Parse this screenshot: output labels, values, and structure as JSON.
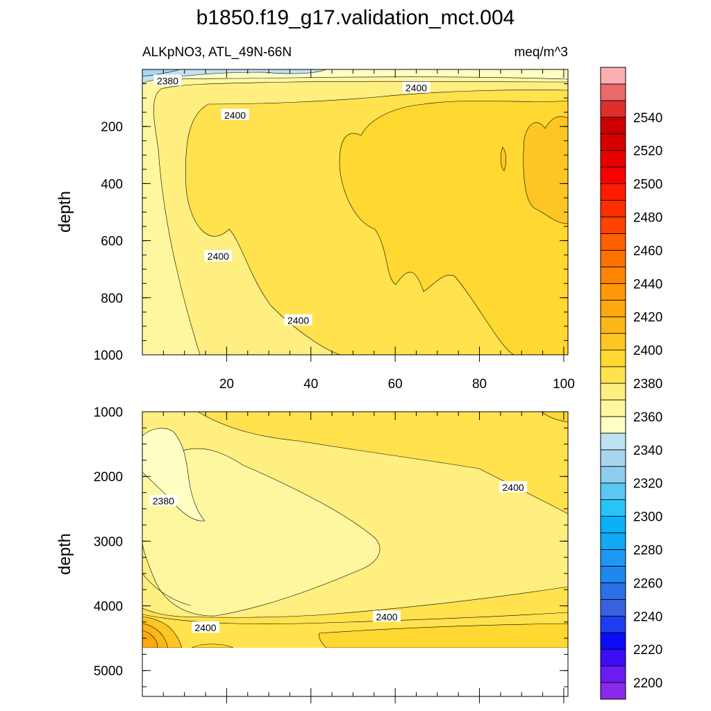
{
  "chart_data": {
    "type": "heatmap",
    "title": "b1850.f19_g17.validation_mct.004",
    "subtitle_left": "ALKpNO3, ATL_49N-66N",
    "subtitle_right": "meq/m^3",
    "panels": [
      {
        "id": "upper",
        "ylabel": "depth",
        "ylim": [
          1000,
          0
        ],
        "xlim": [
          0,
          101
        ],
        "y_ticks": [
          "200",
          "400",
          "600",
          "800",
          "1000"
        ],
        "x_ticks": [
          "20",
          "40",
          "60",
          "80",
          "100"
        ],
        "contour_labels": [
          {
            "text": "2380",
            "x": 6,
            "y": 40
          },
          {
            "text": "2400",
            "x": 65,
            "y": 65
          },
          {
            "text": "2400",
            "x": 22,
            "y": 160
          },
          {
            "text": "2400",
            "x": 18,
            "y": 655
          },
          {
            "text": "2400",
            "x": 37,
            "y": 880
          }
        ]
      },
      {
        "id": "lower",
        "ylabel": "depth",
        "ylim": [
          5400,
          1000
        ],
        "xlim": [
          0,
          101
        ],
        "y_ticks": [
          "1000",
          "2000",
          "3000",
          "4000",
          "5000"
        ],
        "x_ticks": [],
        "contour_labels": [
          {
            "text": "2380",
            "x": 5,
            "y": 2380
          },
          {
            "text": "2400",
            "x": 88,
            "y": 2170
          },
          {
            "text": "2400",
            "x": 58,
            "y": 4170
          },
          {
            "text": "2400",
            "x": 15,
            "y": 4340
          }
        ]
      }
    ],
    "colorbar": {
      "labels": [
        "2200",
        "2220",
        "2240",
        "2260",
        "2280",
        "2300",
        "2320",
        "2340",
        "2360",
        "2380",
        "2400",
        "2420",
        "2440",
        "2460",
        "2480",
        "2500",
        "2520",
        "2540"
      ],
      "colors": [
        "#8a29e8",
        "#6a1cf2",
        "#3b0df5",
        "#0a0cf5",
        "#1e3cf0",
        "#3a62e0",
        "#2c70e8",
        "#1e88f0",
        "#1e98f5",
        "#12a8f5",
        "#0ab0f8",
        "#28c4f8",
        "#5ac8f0",
        "#8ccdee",
        "#a8d6ee",
        "#bfe2f2",
        "#ffffc4",
        "#fff7a0",
        "#ffee80",
        "#ffe24e",
        "#ffd832",
        "#fec624",
        "#fbb618",
        "#fca810",
        "#fe9808",
        "#fe8404",
        "#fe7200",
        "#fd6000",
        "#fe4400",
        "#fe2e00",
        "#ff1c00",
        "#f80000",
        "#e80000",
        "#d40000",
        "#cc0000",
        "#de2e2e",
        "#ea6a6a",
        "#fab0b0"
      ]
    }
  }
}
